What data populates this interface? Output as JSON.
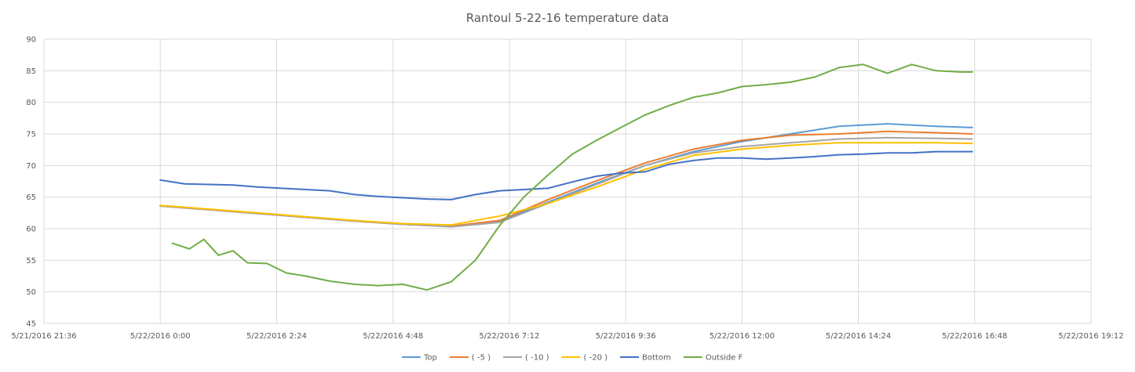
{
  "chart_data": {
    "type": "line",
    "title": "Rantoul 5-22-16 temperature data",
    "xlabel": "",
    "ylabel": "",
    "x_unit": "hours since 5/22/2016 0:00",
    "xlim": [
      -2.4,
      19.2
    ],
    "ylim": [
      45,
      90
    ],
    "y_ticks": [
      45,
      50,
      55,
      60,
      65,
      70,
      75,
      80,
      85,
      90
    ],
    "x_ticks": [
      {
        "value": -2.4,
        "label": "5/21/2016 21:36"
      },
      {
        "value": 0,
        "label": "5/22/2016 0:00"
      },
      {
        "value": 2.4,
        "label": "5/22/2016 2:24"
      },
      {
        "value": 4.8,
        "label": "5/22/2016 4:48"
      },
      {
        "value": 7.2,
        "label": "5/22/2016 7:12"
      },
      {
        "value": 9.6,
        "label": "5/22/2016 9:36"
      },
      {
        "value": 12,
        "label": "5/22/2016 12:00"
      },
      {
        "value": 14.4,
        "label": "5/22/2016 14:24"
      },
      {
        "value": 16.8,
        "label": "5/22/2016 16:48"
      },
      {
        "value": 19.2,
        "label": "5/22/2016 19:12"
      }
    ],
    "grid": true,
    "legend_position": "bottom",
    "series": [
      {
        "name": "Top",
        "color": "#5B9BD5",
        "x": [
          0,
          1,
          2,
          3,
          4,
          5,
          6,
          7,
          8,
          9,
          10,
          11,
          12,
          13,
          14,
          15,
          16,
          16.75
        ],
        "y": [
          63.6,
          63.0,
          62.4,
          61.8,
          61.2,
          60.7,
          60.4,
          61.2,
          64.2,
          67.2,
          70.0,
          72.2,
          73.8,
          75.0,
          76.2,
          76.6,
          76.2,
          76.0
        ]
      },
      {
        "name": "( -5 )",
        "color": "#ED7D31",
        "x": [
          0,
          1,
          2,
          3,
          4,
          5,
          6,
          7,
          8,
          9,
          10,
          11,
          12,
          13,
          14,
          15,
          16,
          16.75
        ],
        "y": [
          63.6,
          63.0,
          62.4,
          61.8,
          61.2,
          60.7,
          60.4,
          61.3,
          64.6,
          67.6,
          70.4,
          72.6,
          74.0,
          74.8,
          75.0,
          75.4,
          75.2,
          75.0
        ]
      },
      {
        "name": "( -10 )",
        "color": "#A5A5A5",
        "x": [
          0,
          1,
          2,
          3,
          4,
          5,
          6,
          7,
          8,
          9,
          10,
          11,
          12,
          13,
          14,
          15,
          16,
          16.75
        ],
        "y": [
          63.6,
          63.0,
          62.4,
          61.8,
          61.2,
          60.7,
          60.3,
          61.0,
          64.0,
          67.0,
          70.0,
          72.0,
          73.0,
          73.6,
          74.2,
          74.4,
          74.3,
          74.2
        ]
      },
      {
        "name": "( -20 )",
        "color": "#FFC000",
        "x": [
          0,
          1,
          2,
          3,
          4,
          5,
          6,
          7,
          8,
          9,
          10,
          11,
          12,
          13,
          14,
          15,
          16,
          16.75
        ],
        "y": [
          63.7,
          63.1,
          62.5,
          61.9,
          61.3,
          60.8,
          60.6,
          62.0,
          64.0,
          66.6,
          69.4,
          71.6,
          72.6,
          73.2,
          73.6,
          73.6,
          73.6,
          73.5
        ]
      },
      {
        "name": "Bottom",
        "color": "#4472C4",
        "x": [
          0,
          0.5,
          1,
          1.5,
          2,
          2.5,
          3,
          3.5,
          4,
          4.5,
          5,
          5.5,
          6,
          6.5,
          7,
          7.5,
          8,
          8.5,
          9,
          9.5,
          10,
          10.5,
          11,
          11.5,
          12,
          12.5,
          13,
          13.5,
          14,
          14.5,
          15,
          15.5,
          16,
          16.75
        ],
        "y": [
          67.7,
          67.1,
          67.0,
          66.9,
          66.6,
          66.4,
          66.2,
          66.0,
          65.4,
          65.1,
          64.9,
          64.7,
          64.6,
          65.4,
          66.0,
          66.2,
          66.4,
          67.4,
          68.3,
          68.8,
          69.0,
          70.2,
          70.8,
          71.2,
          71.2,
          71.0,
          71.2,
          71.4,
          71.7,
          71.8,
          72.0,
          72.0,
          72.2,
          72.2
        ]
      },
      {
        "name": "Outside F",
        "color": "#70AD47",
        "x": [
          0.25,
          0.6,
          0.9,
          1.2,
          1.5,
          1.8,
          2.2,
          2.6,
          3.0,
          3.5,
          4.0,
          4.5,
          5.0,
          5.5,
          6.0,
          6.5,
          7.0,
          7.5,
          8.0,
          8.5,
          9.0,
          9.5,
          10.0,
          10.5,
          11.0,
          11.5,
          12.0,
          12.5,
          13.0,
          13.5,
          14.0,
          14.5,
          15.0,
          15.5,
          16.0,
          16.5,
          16.75
        ],
        "y": [
          57.7,
          56.8,
          58.3,
          55.8,
          56.5,
          54.6,
          54.5,
          53.0,
          52.5,
          51.7,
          51.2,
          51.0,
          51.2,
          50.3,
          51.6,
          55.0,
          60.5,
          65.0,
          68.5,
          71.8,
          74.0,
          76.0,
          78.0,
          79.5,
          80.8,
          81.5,
          82.5,
          82.8,
          83.2,
          84.0,
          85.5,
          86.0,
          84.6,
          86.0,
          85.0,
          84.8,
          84.8
        ]
      }
    ]
  }
}
